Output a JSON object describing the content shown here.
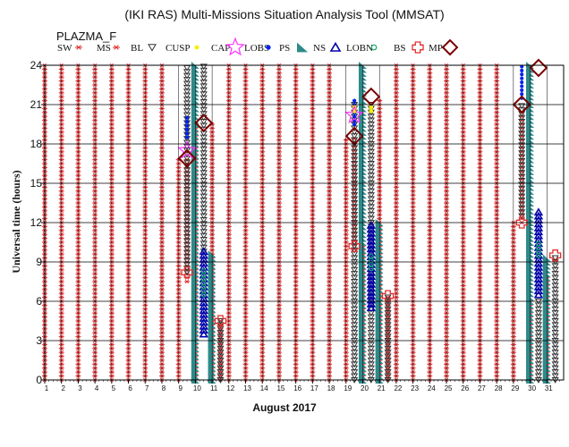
{
  "title": "(IKI RAS) Multi-Missions Situation Analysis Tool (MMSAT)",
  "subtitle": "PLAZMA_F",
  "chart_data": {
    "type": "scatter",
    "xlabel": "August 2017",
    "ylabel": "Universal time (hours)",
    "xlim": [
      1,
      32
    ],
    "ylim": [
      0,
      24
    ],
    "x_ticks": [
      "1",
      "2",
      "3",
      "4",
      "5",
      "6",
      "7",
      "8",
      "9",
      "10",
      "11",
      "12",
      "13",
      "14",
      "15",
      "16",
      "17",
      "18",
      "19",
      "20",
      "21",
      "22",
      "23",
      "24",
      "25",
      "26",
      "27",
      "28",
      "29",
      "30",
      "31"
    ],
    "y_ticks": [
      "0",
      "3",
      "6",
      "9",
      "12",
      "15",
      "18",
      "21",
      "24"
    ],
    "grid": true,
    "legend": [
      {
        "key": "SW",
        "label": "SW",
        "color": "#e03030"
      },
      {
        "key": "MS",
        "label": "MS",
        "color": "#e03030"
      },
      {
        "key": "BL",
        "label": "BL",
        "color": "#333333"
      },
      {
        "key": "CUSP",
        "label": "CUSP",
        "color": "#f4f000"
      },
      {
        "key": "CAP",
        "label": "CAP",
        "color": "#ff33ff"
      },
      {
        "key": "LOBS",
        "label": "LOBS",
        "color": "#0022ee"
      },
      {
        "key": "PS",
        "label": "PS",
        "color": "#2e8a8a"
      },
      {
        "key": "NS",
        "label": "NS",
        "color": "#0000aa"
      },
      {
        "key": "LOBN",
        "label": "LOBN",
        "color": "#11aa66"
      },
      {
        "key": "BS",
        "label": "BS",
        "color": "#e03030"
      },
      {
        "key": "MP",
        "label": "MP",
        "color": "#7a0000"
      }
    ],
    "regions": {
      "SW": [
        [
          1,
          0,
          24
        ],
        [
          2,
          0,
          24
        ],
        [
          3,
          0,
          24
        ],
        [
          4,
          0,
          24
        ],
        [
          5,
          0,
          24
        ],
        [
          6,
          0,
          24
        ],
        [
          7,
          0,
          24
        ],
        [
          8,
          0,
          24
        ],
        [
          9,
          0,
          16.8
        ],
        [
          10,
          0,
          19.5
        ],
        [
          11,
          0,
          19.5
        ],
        [
          12,
          0,
          24
        ],
        [
          13,
          0,
          24
        ],
        [
          14,
          0,
          24
        ],
        [
          15,
          0,
          24
        ],
        [
          16,
          0,
          24
        ],
        [
          17,
          0,
          24
        ],
        [
          18,
          0,
          24
        ],
        [
          19,
          0,
          18.5
        ],
        [
          20,
          0,
          10.2
        ],
        [
          21,
          0,
          21.5
        ],
        [
          22,
          0,
          24
        ],
        [
          23,
          0,
          24
        ],
        [
          24,
          0,
          24
        ],
        [
          25,
          0,
          24
        ],
        [
          26,
          0,
          24
        ],
        [
          27,
          0,
          24
        ],
        [
          28,
          0,
          24
        ],
        [
          29,
          0,
          12
        ],
        [
          30,
          0,
          6
        ],
        [
          31,
          0,
          8
        ]
      ],
      "MS": [
        [
          9.5,
          7.5,
          16.8
        ],
        [
          19.5,
          10,
          18.5
        ],
        [
          21.5,
          0,
          6.5
        ],
        [
          29.5,
          12,
          20.5
        ],
        [
          11.5,
          0,
          4.5
        ]
      ],
      "BL": [
        [
          9.5,
          8.2,
          24
        ],
        [
          10.5,
          9.8,
          24
        ],
        [
          11.5,
          0,
          4.5
        ],
        [
          19.5,
          0,
          21
        ],
        [
          20.5,
          0,
          21
        ],
        [
          21.5,
          0,
          6.4
        ],
        [
          29.5,
          12.5,
          21
        ],
        [
          30.5,
          0,
          6
        ],
        [
          31.5,
          0,
          9.5
        ]
      ],
      "PS": [
        [
          10,
          0,
          24
        ],
        [
          11,
          0,
          9.8
        ],
        [
          20,
          0,
          24
        ],
        [
          21,
          0,
          12
        ],
        [
          30,
          0,
          24
        ],
        [
          31,
          0,
          9.5
        ]
      ],
      "NS": [
        [
          10.5,
          3.5,
          9.8
        ],
        [
          20.5,
          5.5,
          11.8
        ],
        [
          30.5,
          6.5,
          13
        ]
      ],
      "LOBN": [
        [
          10.5,
          6.5,
          8.5
        ],
        [
          20.5,
          8.5,
          9.5
        ],
        [
          30.5,
          9.5,
          10.5
        ]
      ],
      "LOBS": [
        [
          9.5,
          18.5,
          20
        ],
        [
          19.5,
          19.5,
          21.5
        ],
        [
          29.5,
          21.5,
          24
        ]
      ],
      "CUSP": [
        [
          19.5,
          20.5,
          21
        ],
        [
          20.5,
          20.5,
          21
        ]
      ],
      "CAP": [
        [
          9.5,
          17.5
        ],
        [
          19.5,
          20.2
        ]
      ],
      "BS": [
        [
          9.5,
          8.2
        ],
        [
          11.5,
          4.5
        ],
        [
          19.5,
          10.2
        ],
        [
          21.5,
          6.4
        ],
        [
          29.5,
          12
        ],
        [
          31.5,
          9.5
        ]
      ],
      "MP": [
        [
          9.5,
          16.9
        ],
        [
          10.5,
          19.6
        ],
        [
          19.5,
          18.6
        ],
        [
          20.5,
          21.6
        ],
        [
          29.5,
          21
        ],
        [
          30.5,
          23.8
        ]
      ]
    }
  }
}
